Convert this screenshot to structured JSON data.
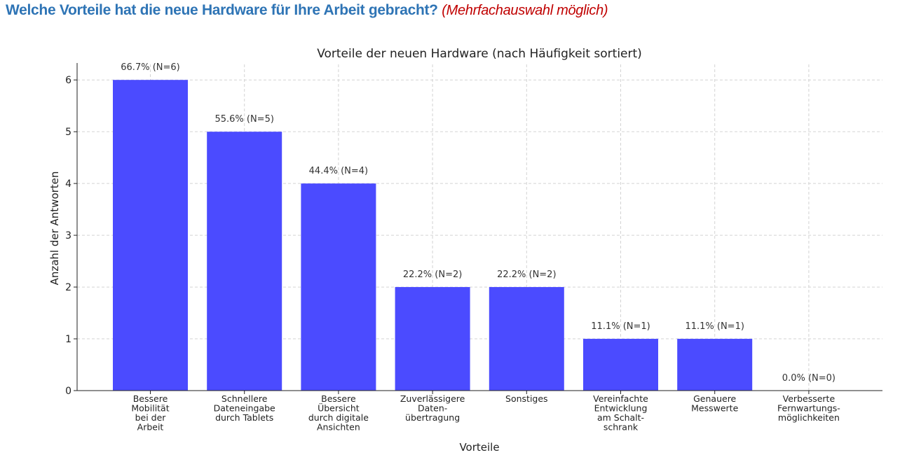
{
  "heading": {
    "question": "Welche Vorteile hat die neue Hardware für Ihre Arbeit gebracht?",
    "note": "(Mehrfachauswahl möglich)"
  },
  "chart_data": {
    "type": "bar",
    "title": "Vorteile der neuen Hardware (nach Häufigkeit sortiert)",
    "xlabel": "Vorteile",
    "ylabel": "Anzahl der Antworten",
    "ylim": [
      0,
      6.3
    ],
    "yticks": [
      0,
      1,
      2,
      3,
      4,
      5,
      6
    ],
    "grid": true,
    "bar_color": "#4b4bff",
    "categories": [
      [
        "Bessere",
        "Mobilität",
        "bei der",
        "Arbeit"
      ],
      [
        "Schnellere",
        "Dateneingabe",
        "durch Tablets"
      ],
      [
        "Bessere",
        "Übersicht",
        "durch digitale",
        "Ansichten"
      ],
      [
        "Zuverlässigere",
        "Daten-",
        "übertragung"
      ],
      [
        "Sonstiges"
      ],
      [
        "Vereinfachte",
        "Entwicklung",
        "am Schalt-",
        "schrank"
      ],
      [
        "Genauere",
        "Messwerte"
      ],
      [
        "Verbesserte",
        "Fernwartungs-",
        "möglichkeiten"
      ]
    ],
    "values": [
      6,
      5,
      4,
      2,
      2,
      1,
      1,
      0
    ],
    "data_labels": [
      "66.7% (N=6)",
      "55.6% (N=5)",
      "44.4% (N=4)",
      "22.2% (N=2)",
      "22.2% (N=2)",
      "11.1% (N=1)",
      "11.1% (N=1)",
      "0.0% (N=0)"
    ]
  }
}
